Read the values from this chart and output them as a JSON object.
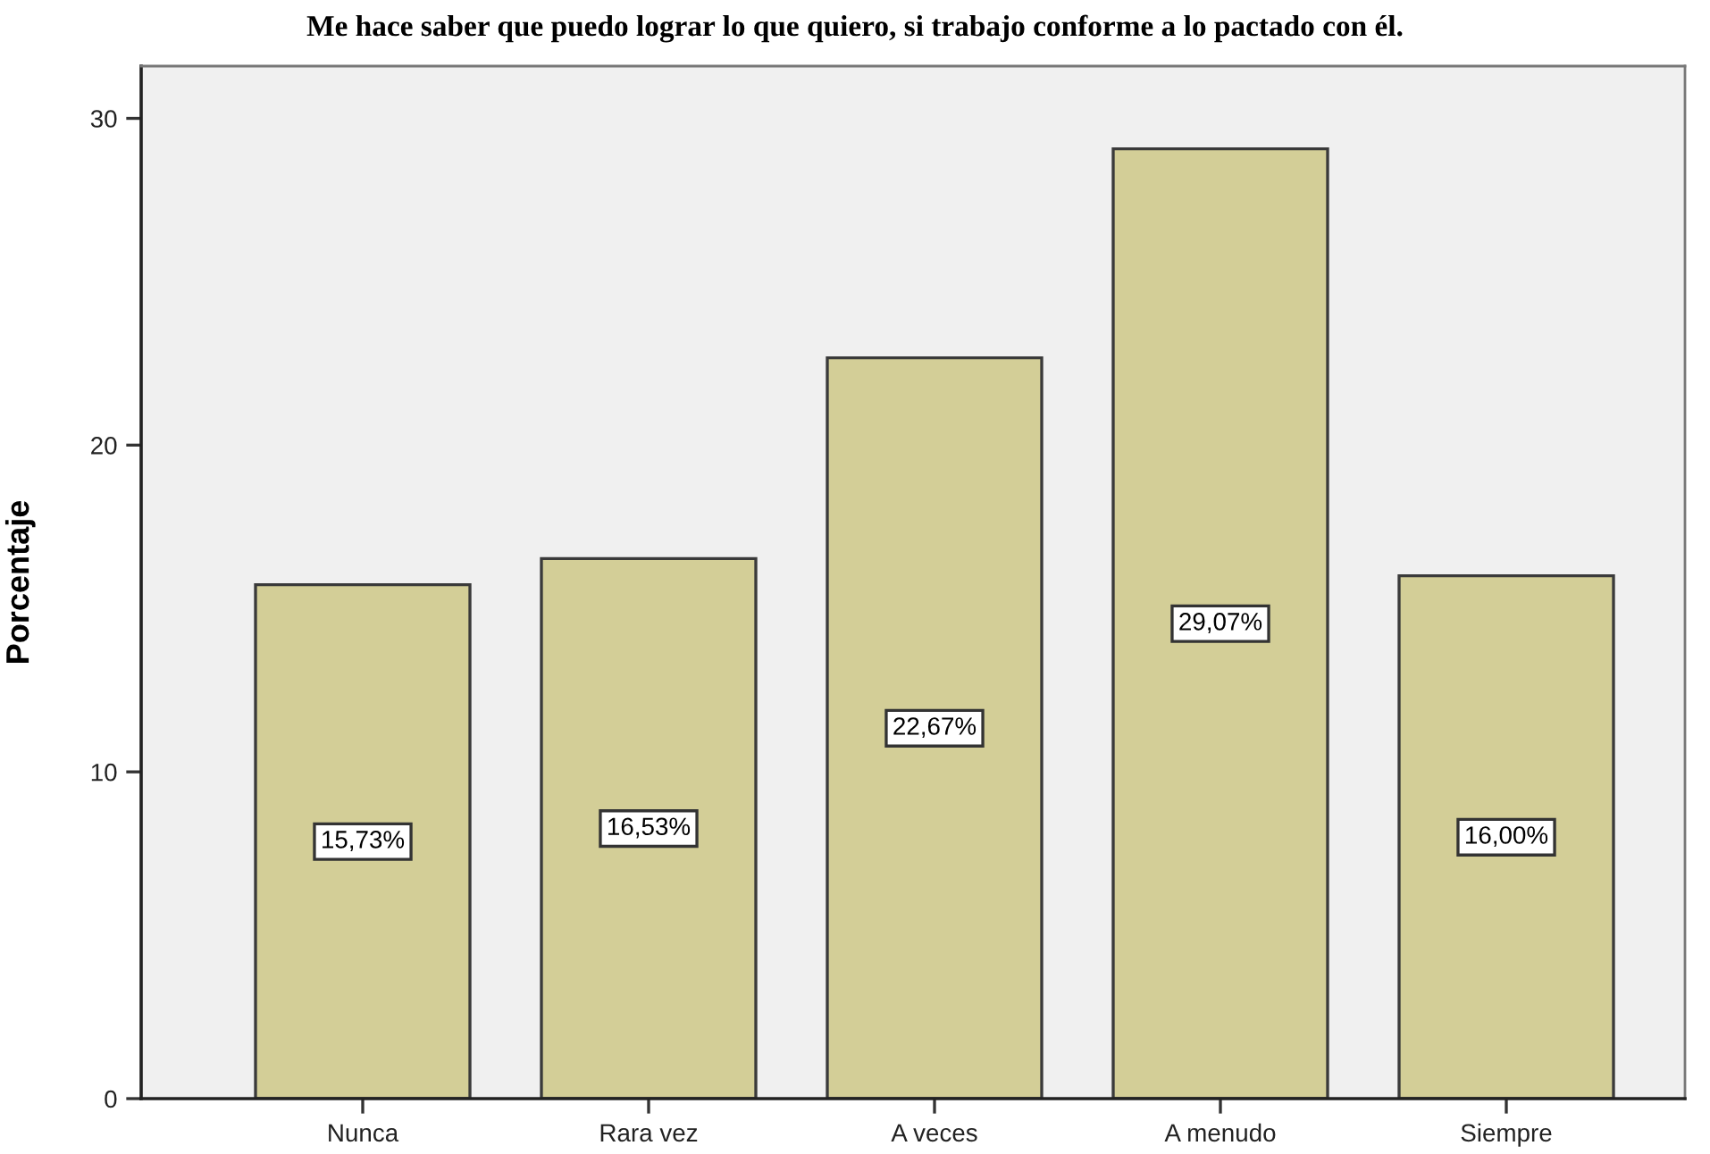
{
  "chart_data": {
    "type": "bar",
    "title": "Me hace saber que puedo lograr lo que quiero, si trabajo conforme a lo pactado con él.",
    "ylabel": "Porcentaje",
    "categories": [
      "Nunca",
      "Rara vez",
      "A veces",
      "A menudo",
      "Siempre"
    ],
    "values": [
      15.73,
      16.53,
      22.67,
      29.07,
      16.0
    ],
    "value_labels": [
      "15,73%",
      "16,53%",
      "22,67%",
      "29,07%",
      "16,00%"
    ],
    "color": "#d3ce97",
    "ylim": [
      0,
      31.6
    ],
    "yticks": [
      0,
      10,
      20,
      30
    ]
  }
}
